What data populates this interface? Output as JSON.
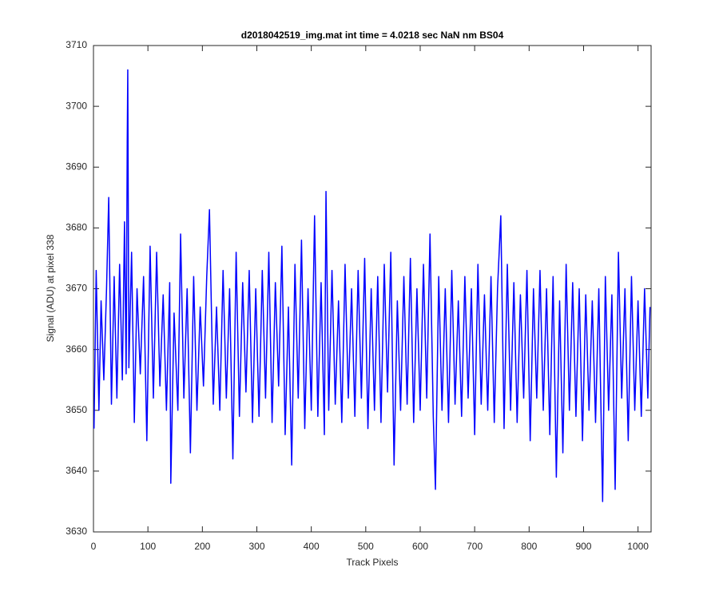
{
  "chart_data": {
    "type": "line",
    "title": "d2018042519_img.mat int time = 4.0218 sec  NaN nm BS04",
    "x_label": "Track Pixels",
    "y_label": "Signal (ADU) at pixel 338",
    "xlim": [
      0,
      1024
    ],
    "ylim": [
      3630,
      3710
    ],
    "xticks": [
      0,
      100,
      200,
      300,
      400,
      500,
      600,
      700,
      800,
      900,
      1000
    ],
    "yticks": [
      3630,
      3640,
      3650,
      3660,
      3670,
      3680,
      3690,
      3700,
      3710
    ],
    "x": [
      1,
      5,
      10,
      14,
      19,
      24,
      28,
      33,
      38,
      43,
      48,
      53,
      57,
      60,
      62,
      63,
      65,
      70,
      75,
      80,
      86,
      92,
      98,
      104,
      110,
      116,
      122,
      128,
      134,
      140,
      142,
      148,
      155,
      160,
      166,
      172,
      178,
      184,
      190,
      196,
      202,
      208,
      213,
      220,
      226,
      232,
      238,
      244,
      250,
      256,
      262,
      268,
      274,
      280,
      286,
      292,
      298,
      304,
      310,
      316,
      322,
      328,
      334,
      340,
      346,
      352,
      358,
      364,
      370,
      376,
      382,
      388,
      394,
      400,
      406,
      412,
      418,
      424,
      427,
      432,
      438,
      444,
      450,
      456,
      462,
      468,
      474,
      480,
      486,
      492,
      498,
      504,
      510,
      516,
      522,
      528,
      534,
      540,
      546,
      552,
      558,
      564,
      570,
      576,
      582,
      588,
      594,
      600,
      606,
      612,
      618,
      624,
      628,
      634,
      640,
      646,
      652,
      658,
      664,
      670,
      676,
      682,
      688,
      694,
      700,
      706,
      712,
      718,
      724,
      730,
      736,
      742,
      748,
      754,
      760,
      766,
      772,
      778,
      784,
      790,
      796,
      802,
      808,
      814,
      820,
      826,
      832,
      838,
      844,
      850,
      856,
      862,
      868,
      874,
      880,
      886,
      892,
      898,
      904,
      910,
      916,
      922,
      928,
      935,
      940,
      946,
      952,
      958,
      964,
      970,
      976,
      982,
      988,
      994,
      1000,
      1006,
      1012,
      1018,
      1022
    ],
    "series": [
      {
        "color": "#0000ff",
        "values": [
          3647,
          3673,
          3650,
          3668,
          3655,
          3670,
          3685,
          3651,
          3672,
          3652,
          3674,
          3655,
          3681,
          3656,
          3694,
          3706,
          3657,
          3676,
          3648,
          3670,
          3656,
          3672,
          3645,
          3677,
          3652,
          3676,
          3654,
          3669,
          3650,
          3671,
          3638,
          3666,
          3650,
          3679,
          3652,
          3670,
          3643,
          3672,
          3650,
          3667,
          3654,
          3672,
          3683,
          3651,
          3667,
          3650,
          3673,
          3652,
          3670,
          3642,
          3676,
          3649,
          3671,
          3653,
          3673,
          3648,
          3670,
          3649,
          3673,
          3652,
          3676,
          3648,
          3671,
          3654,
          3677,
          3646,
          3667,
          3641,
          3674,
          3652,
          3678,
          3647,
          3670,
          3650,
          3682,
          3649,
          3671,
          3646,
          3686,
          3650,
          3673,
          3651,
          3668,
          3648,
          3674,
          3652,
          3670,
          3649,
          3673,
          3652,
          3675,
          3647,
          3670,
          3650,
          3672,
          3648,
          3674,
          3653,
          3676,
          3641,
          3668,
          3650,
          3672,
          3651,
          3675,
          3648,
          3670,
          3650,
          3674,
          3652,
          3679,
          3649,
          3637,
          3672,
          3650,
          3670,
          3648,
          3673,
          3651,
          3668,
          3649,
          3672,
          3652,
          3670,
          3646,
          3674,
          3651,
          3669,
          3650,
          3672,
          3648,
          3670,
          3682,
          3647,
          3674,
          3650,
          3671,
          3648,
          3669,
          3652,
          3673,
          3645,
          3670,
          3652,
          3673,
          3650,
          3670,
          3646,
          3672,
          3639,
          3668,
          3643,
          3674,
          3650,
          3671,
          3649,
          3670,
          3645,
          3669,
          3650,
          3668,
          3648,
          3670,
          3635,
          3672,
          3650,
          3669,
          3637,
          3676,
          3652,
          3670,
          3645,
          3672,
          3650,
          3668,
          3649,
          3670,
          3652,
          3667
        ]
      }
    ]
  }
}
